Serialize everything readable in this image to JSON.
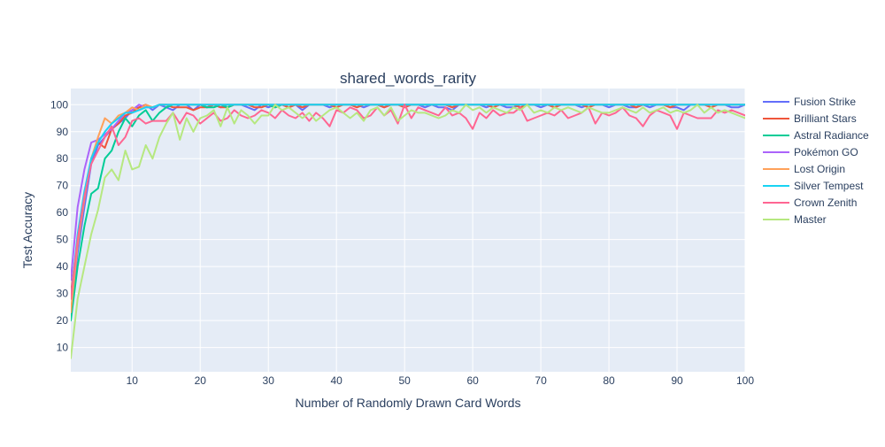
{
  "chart_data": {
    "type": "line",
    "title": "shared_words_rarity",
    "xlabel": "Number of Randomly Drawn Card Words",
    "ylabel": "Test Accuracy",
    "xlim": [
      1,
      100
    ],
    "ylim": [
      1,
      106
    ],
    "xticks": [
      10,
      20,
      30,
      40,
      50,
      60,
      70,
      80,
      90,
      100
    ],
    "yticks": [
      10,
      20,
      30,
      40,
      50,
      60,
      70,
      80,
      90,
      100
    ],
    "grid": true,
    "legend_position": "right",
    "colors": {
      "plot_background": "#e5ecf6",
      "grid": "#ffffff",
      "text": "#2a3f5f"
    },
    "series": [
      {
        "name": "Fusion Strike",
        "color": "#636efa",
        "values": [
          22,
          45,
          62,
          78,
          85,
          88,
          91,
          93,
          95,
          98,
          99,
          100,
          98,
          100,
          99,
          98,
          100,
          100,
          98,
          100,
          99,
          100,
          99,
          100,
          100,
          100,
          99,
          98,
          100,
          99,
          100,
          100,
          99,
          100,
          98,
          100,
          100,
          100,
          99,
          100,
          100,
          100,
          100,
          99,
          100,
          100,
          99,
          100,
          100,
          100,
          100,
          100,
          99,
          100,
          99,
          99,
          98,
          100,
          100,
          100,
          100,
          99,
          100,
          100,
          99,
          99,
          100,
          100,
          100,
          99,
          100,
          99,
          100,
          100,
          100,
          99,
          100,
          100,
          100,
          99,
          100,
          100,
          99,
          99,
          100,
          99,
          100,
          100,
          99,
          99,
          98,
          100,
          100,
          100,
          100,
          100,
          100,
          99,
          99,
          100
        ]
      },
      {
        "name": "Brilliant Stars",
        "color": "#ef553b",
        "values": [
          30,
          50,
          65,
          80,
          86,
          84,
          91,
          93,
          96,
          97,
          99,
          100,
          99,
          100,
          100,
          99,
          99,
          99,
          98,
          99,
          99,
          100,
          99,
          99,
          100,
          100,
          100,
          99,
          99,
          100,
          99,
          100,
          99,
          100,
          99,
          100,
          100,
          100,
          100,
          99,
          100,
          100,
          99,
          100,
          100,
          100,
          99,
          100,
          100,
          99,
          100,
          100,
          100,
          100,
          100,
          100,
          99,
          100,
          100,
          100,
          100,
          100,
          99,
          100,
          100,
          100,
          99,
          100,
          100,
          100,
          100,
          99,
          100,
          100,
          100,
          100,
          99,
          100,
          100,
          100,
          100,
          100,
          100,
          99,
          100,
          100,
          100,
          100,
          99,
          100,
          100,
          100,
          100,
          100,
          99,
          100,
          100,
          100,
          100,
          100
        ]
      },
      {
        "name": "Astral Radiance",
        "color": "#00cc96",
        "values": [
          20,
          40,
          55,
          67,
          69,
          80,
          83,
          90,
          95,
          92,
          96,
          98,
          94,
          97,
          99,
          100,
          100,
          100,
          100,
          100,
          99,
          99,
          100,
          99,
          100,
          100,
          100,
          100,
          100,
          100,
          99,
          100,
          100,
          100,
          100,
          100,
          100,
          100,
          100,
          100,
          100,
          100,
          100,
          100,
          100,
          100,
          100,
          100,
          100,
          100,
          100,
          100,
          100,
          100,
          100,
          100,
          100,
          100,
          100,
          100,
          100,
          100,
          100,
          100,
          100,
          100,
          100,
          100,
          100,
          100,
          100,
          100,
          100,
          100,
          100,
          100,
          100,
          100,
          100,
          100,
          100,
          100,
          100,
          100,
          100,
          100,
          100,
          100,
          100,
          100,
          100,
          100,
          100,
          100,
          100,
          100,
          100,
          100,
          100,
          100
        ]
      },
      {
        "name": "Pokémon GO",
        "color": "#ab63fa",
        "values": [
          35,
          62,
          76,
          86,
          87,
          89,
          91,
          94,
          97,
          98,
          100,
          99,
          99,
          100,
          100,
          100,
          100,
          100,
          100,
          100,
          100,
          100,
          100,
          100,
          100,
          100,
          100,
          100,
          100,
          100,
          100,
          100,
          100,
          100,
          100,
          100,
          100,
          100,
          100,
          100,
          100,
          100,
          100,
          100,
          100,
          100,
          100,
          100,
          100,
          100,
          100,
          100,
          100,
          100,
          100,
          100,
          100,
          100,
          100,
          100,
          100,
          100,
          100,
          100,
          100,
          100,
          100,
          100,
          100,
          100,
          100,
          100,
          100,
          100,
          100,
          100,
          100,
          100,
          100,
          100,
          100,
          100,
          100,
          100,
          100,
          100,
          100,
          100,
          100,
          100,
          100,
          100,
          100,
          100,
          100,
          100,
          100,
          100,
          100,
          100
        ]
      },
      {
        "name": "Lost Origin",
        "color": "#ffa15a",
        "values": [
          23,
          48,
          65,
          80,
          88,
          95,
          93,
          96,
          97,
          99,
          98,
          100,
          99,
          100,
          100,
          100,
          100,
          100,
          100,
          100,
          100,
          100,
          100,
          100,
          100,
          100,
          100,
          100,
          100,
          100,
          100,
          100,
          100,
          100,
          100,
          100,
          100,
          100,
          100,
          100,
          100,
          100,
          100,
          100,
          100,
          100,
          100,
          100,
          100,
          100,
          100,
          100,
          100,
          100,
          100,
          100,
          100,
          100,
          100,
          100,
          100,
          100,
          100,
          100,
          100,
          100,
          100,
          100,
          100,
          100,
          100,
          100,
          100,
          100,
          100,
          100,
          100,
          100,
          100,
          100,
          100,
          100,
          100,
          100,
          100,
          100,
          100,
          100,
          100,
          100,
          100,
          100,
          100,
          100,
          100,
          100,
          100,
          100,
          100,
          100
        ]
      },
      {
        "name": "Silver Tempest",
        "color": "#19d3f3",
        "values": [
          28,
          52,
          68,
          80,
          86,
          90,
          93,
          95,
          97,
          97,
          98,
          99,
          99,
          100,
          100,
          100,
          100,
          100,
          100,
          100,
          100,
          100,
          100,
          100,
          100,
          100,
          100,
          100,
          100,
          100,
          100,
          100,
          100,
          100,
          100,
          100,
          100,
          100,
          100,
          100,
          100,
          100,
          100,
          100,
          100,
          100,
          100,
          100,
          100,
          100,
          100,
          100,
          100,
          100,
          100,
          100,
          100,
          100,
          100,
          100,
          100,
          100,
          100,
          100,
          100,
          100,
          100,
          100,
          100,
          100,
          100,
          100,
          100,
          100,
          100,
          100,
          100,
          100,
          100,
          100,
          100,
          100,
          100,
          100,
          100,
          100,
          100,
          100,
          100,
          100,
          100,
          100,
          100,
          100,
          100,
          100,
          100,
          100,
          100,
          100
        ]
      },
      {
        "name": "Crown Zenith",
        "color": "#ff6692",
        "values": [
          28,
          50,
          66,
          78,
          83,
          88,
          92,
          85,
          88,
          94,
          95,
          93,
          94,
          94,
          94,
          97,
          93,
          97,
          96,
          93,
          95,
          97,
          94,
          95,
          98,
          96,
          95,
          96,
          98,
          97,
          95,
          98,
          96,
          95,
          97,
          94,
          97,
          95,
          92,
          98,
          97,
          99,
          98,
          95,
          96,
          99,
          96,
          98,
          93,
          100,
          95,
          99,
          98,
          97,
          96,
          99,
          96,
          97,
          95,
          91,
          97,
          95,
          98,
          96,
          97,
          97,
          99,
          94,
          95,
          96,
          97,
          96,
          98,
          95,
          96,
          97,
          99,
          93,
          97,
          96,
          97,
          99,
          96,
          95,
          92,
          96,
          98,
          97,
          96,
          91,
          97,
          96,
          95,
          95,
          95,
          98,
          97,
          98,
          97,
          96
        ]
      },
      {
        "name": "Master",
        "color": "#b6e880",
        "values": [
          6,
          28,
          40,
          52,
          61,
          73,
          76,
          72,
          83,
          76,
          77,
          85,
          80,
          88,
          93,
          97,
          87,
          95,
          90,
          95,
          96,
          98,
          92,
          99,
          93,
          98,
          96,
          93,
          96,
          96,
          100,
          98,
          99,
          97,
          95,
          97,
          94,
          96,
          98,
          99,
          97,
          95,
          97,
          94,
          98,
          99,
          96,
          99,
          94,
          96,
          98,
          97,
          97,
          96,
          95,
          96,
          98,
          97,
          100,
          98,
          99,
          97,
          99,
          98,
          97,
          99,
          98,
          100,
          97,
          98,
          97,
          99,
          98,
          99,
          98,
          97,
          99,
          98,
          97,
          97,
          98,
          99,
          98,
          97,
          99,
          97,
          98,
          99,
          97,
          98,
          97,
          98,
          100,
          97,
          99,
          97,
          98,
          97,
          96,
          95
        ]
      }
    ]
  }
}
